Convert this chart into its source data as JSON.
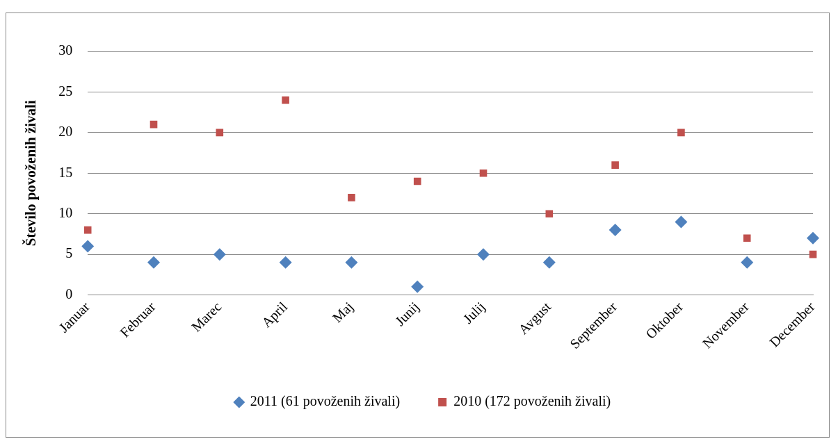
{
  "chart_data": {
    "type": "scatter",
    "ylabel": "Število povoženih živali",
    "categories": [
      "Januar",
      "Februar",
      "Marec",
      "April",
      "Maj",
      "Junij",
      "Julij",
      "Avgust",
      "September",
      "Oktober",
      "November",
      "December"
    ],
    "series": [
      {
        "name": "2011 (61 povoženih živali)",
        "color": "#4f81bd",
        "marker": "diamond",
        "values": [
          6,
          4,
          5,
          4,
          4,
          1,
          5,
          4,
          8,
          9,
          4,
          7
        ]
      },
      {
        "name": "2010 (172 povoženih živali)",
        "color": "#c0504d",
        "marker": "square",
        "values": [
          8,
          21,
          20,
          24,
          12,
          14,
          15,
          10,
          16,
          20,
          7,
          5
        ]
      }
    ],
    "ylim": [
      0,
      30
    ],
    "yticks": [
      0,
      5,
      10,
      15,
      20,
      25,
      30
    ],
    "grid": "y",
    "legend": "bottom"
  }
}
